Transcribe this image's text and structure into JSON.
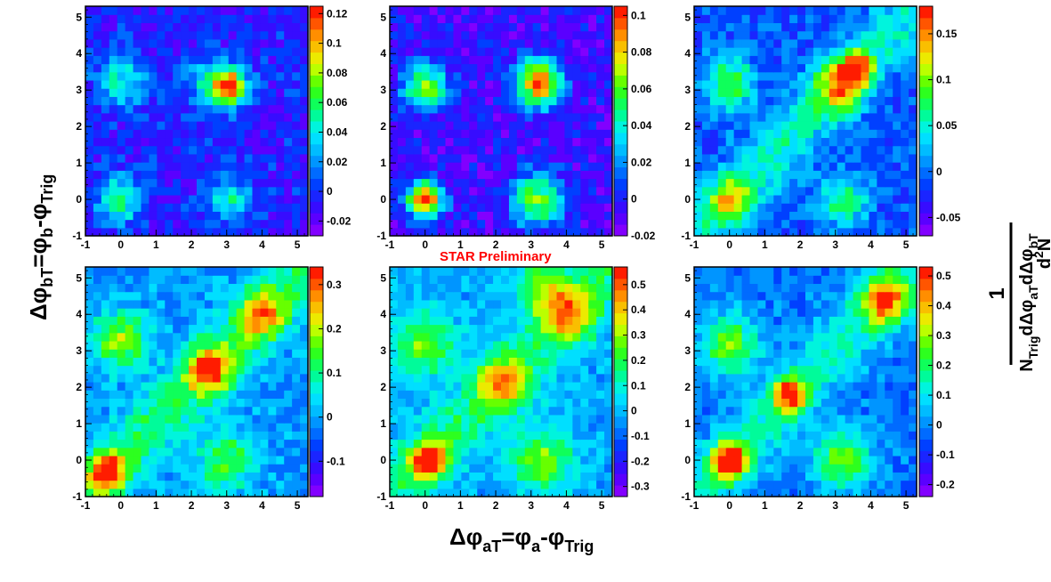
{
  "annotation": "STAR Preliminary",
  "axis_labels": {
    "y": {
      "main": "Δφ",
      "main_sub": "bT",
      "mid": "=φ",
      "mid_sub": "b",
      "tail": "-φ",
      "tail_sub": "Trig"
    },
    "x": {
      "main": "Δφ",
      "main_sub": "aT",
      "mid": "=φ",
      "mid_sub": "a",
      "tail": "-φ",
      "tail_sub": "Trig"
    },
    "z": {
      "numerator": "1",
      "denominator_pre": "N",
      "denominator_pre_sub": "Trig",
      "denominator_mid": "dΔφ",
      "denominator_mid_sub": "aT",
      "denominator_post": "dΔφ",
      "denominator_post_sub": "bT",
      "top": "d",
      "top_sup": "2",
      "top_post": "N"
    }
  },
  "chart_data": [
    {
      "type": "heatmap",
      "panel": "top-left",
      "x_range": [
        -1,
        5.3
      ],
      "y_range": [
        -1,
        5.3
      ],
      "xticks": [
        "-1",
        "0",
        "1",
        "2",
        "3",
        "4",
        "5"
      ],
      "yticks": [
        "-1",
        "0",
        "1",
        "2",
        "3",
        "4",
        "5"
      ],
      "z_range": [
        -0.03,
        0.125
      ],
      "z_ticks": [
        "0.12",
        "0.1",
        "0.08",
        "0.06",
        "0.04",
        "0.02",
        "0",
        "-0.02"
      ],
      "z_tick_values": [
        0.12,
        0.1,
        0.08,
        0.06,
        0.04,
        0.02,
        0,
        -0.02
      ],
      "base": -0.005,
      "features": [
        {
          "x": 0,
          "y": 0,
          "amp": 0.06,
          "s": 0.45
        },
        {
          "x": 0,
          "y": 3.3,
          "amp": 0.05,
          "s": 0.5
        },
        {
          "x": 3.1,
          "y": 3.1,
          "amp": 0.12,
          "s": 0.35
        },
        {
          "x": 3.1,
          "y": 0,
          "amp": 0.05,
          "s": 0.45
        },
        {
          "x": 2.5,
          "y": 3.2,
          "amp": 0.04,
          "s": 0.5
        }
      ],
      "noise": 0.015,
      "seed": 11
    },
    {
      "type": "heatmap",
      "panel": "top-middle",
      "x_range": [
        -1,
        5.3
      ],
      "y_range": [
        -1,
        5.3
      ],
      "xticks": [
        "-1",
        "0",
        "1",
        "2",
        "3",
        "4",
        "5"
      ],
      "yticks": [
        "-1",
        "0",
        "1",
        "2",
        "3",
        "4",
        "5"
      ],
      "z_range": [
        -0.02,
        0.105
      ],
      "z_ticks": [
        "0.1",
        "0.08",
        "0.06",
        "0.04",
        "0.02",
        "0",
        "-0.02"
      ],
      "z_tick_values": [
        0.1,
        0.08,
        0.06,
        0.04,
        0.02,
        0,
        -0.02
      ],
      "base": -0.005,
      "features": [
        {
          "x": 0,
          "y": 0,
          "amp": 0.11,
          "s": 0.35
        },
        {
          "x": 0,
          "y": 3.1,
          "amp": 0.07,
          "s": 0.45
        },
        {
          "x": 3.2,
          "y": 3.2,
          "amp": 0.1,
          "s": 0.45
        },
        {
          "x": 3.2,
          "y": 0,
          "amp": 0.07,
          "s": 0.5
        }
      ],
      "noise": 0.012,
      "seed": 23
    },
    {
      "type": "heatmap",
      "panel": "top-right",
      "x_range": [
        -1,
        5.3
      ],
      "y_range": [
        -1,
        5.3
      ],
      "xticks": [
        "-1",
        "0",
        "1",
        "2",
        "3",
        "4",
        "5"
      ],
      "yticks": [
        "-1",
        "0",
        "1",
        "2",
        "3",
        "4",
        "5"
      ],
      "z_range": [
        -0.07,
        0.18
      ],
      "z_ticks": [
        "0.15",
        "0.1",
        "0.05",
        "0",
        "-0.05"
      ],
      "z_tick_values": [
        0.15,
        0.1,
        0.05,
        0,
        -0.05
      ],
      "base": -0.01,
      "features": [
        {
          "x": 0,
          "y": 0,
          "amp": 0.09,
          "s": 0.45
        },
        {
          "x": 0,
          "y": 3.2,
          "amp": 0.1,
          "s": 0.5
        },
        {
          "x": 3.1,
          "y": 3.1,
          "amp": 0.11,
          "s": 0.5
        },
        {
          "x": 3.6,
          "y": 3.6,
          "amp": 0.15,
          "s": 0.3
        },
        {
          "x": 3.2,
          "y": 0,
          "amp": 0.08,
          "s": 0.5
        }
      ],
      "ridge": {
        "amp": 0.06,
        "s": 0.6
      },
      "noise": 0.02,
      "seed": 37
    },
    {
      "type": "heatmap",
      "panel": "bottom-left",
      "x_range": [
        -1,
        5.3
      ],
      "y_range": [
        -1,
        5.3
      ],
      "xticks": [
        "-1",
        "0",
        "1",
        "2",
        "3",
        "4",
        "5"
      ],
      "yticks": [
        "-1",
        "0",
        "1",
        "2",
        "3",
        "4",
        "5"
      ],
      "z_range": [
        -0.18,
        0.34
      ],
      "z_ticks": [
        "0.3",
        "0.2",
        "0.1",
        "0",
        "-0.1"
      ],
      "z_tick_values": [
        0.3,
        0.2,
        0.1,
        0,
        -0.1
      ],
      "base": -0.01,
      "features": [
        {
          "x": -0.4,
          "y": -0.3,
          "amp": 0.3,
          "s": 0.35
        },
        {
          "x": 0,
          "y": 3.3,
          "amp": 0.2,
          "s": 0.55
        },
        {
          "x": 2.5,
          "y": 2.5,
          "amp": 0.25,
          "s": 0.45
        },
        {
          "x": 4,
          "y": 4,
          "amp": 0.2,
          "s": 0.45
        },
        {
          "x": 3,
          "y": 0,
          "amp": 0.15,
          "s": 0.6
        }
      ],
      "ridge": {
        "amp": 0.12,
        "s": 0.6
      },
      "noise": 0.04,
      "seed": 41
    },
    {
      "type": "heatmap",
      "panel": "bottom-middle",
      "x_range": [
        -1,
        5.3
      ],
      "y_range": [
        -1,
        5.3
      ],
      "xticks": [
        "-1",
        "0",
        "1",
        "2",
        "3",
        "4",
        "5"
      ],
      "yticks": [
        "-1",
        "0",
        "1",
        "2",
        "3",
        "4",
        "5"
      ],
      "z_range": [
        -0.34,
        0.57
      ],
      "z_ticks": [
        "0.5",
        "0.4",
        "0.3",
        "0.2",
        "0.1",
        "0",
        "-0.1",
        "-0.2",
        "-0.3"
      ],
      "z_tick_values": [
        0.5,
        0.4,
        0.3,
        0.2,
        0.1,
        0,
        -0.1,
        -0.2,
        -0.3
      ],
      "base": -0.02,
      "features": [
        {
          "x": 0.1,
          "y": 0,
          "amp": 0.55,
          "s": 0.35
        },
        {
          "x": 2.2,
          "y": 2.1,
          "amp": 0.35,
          "s": 0.5
        },
        {
          "x": 4.1,
          "y": 4,
          "amp": 0.35,
          "s": 0.5
        },
        {
          "x": 3.3,
          "y": 0,
          "amp": 0.3,
          "s": 0.6
        },
        {
          "x": 0,
          "y": 3.2,
          "amp": 0.3,
          "s": 0.6
        },
        {
          "x": 3.3,
          "y": 4.8,
          "amp": 0.3,
          "s": 0.5
        }
      ],
      "ridge": {
        "amp": 0.18,
        "s": 0.6
      },
      "noise": 0.06,
      "seed": 53
    },
    {
      "type": "heatmap",
      "panel": "bottom-right",
      "x_range": [
        -1,
        5.3
      ],
      "y_range": [
        -1,
        5.3
      ],
      "xticks": [
        "-1",
        "0",
        "1",
        "2",
        "3",
        "4",
        "5"
      ],
      "yticks": [
        "-1",
        "0",
        "1",
        "2",
        "3",
        "4",
        "5"
      ],
      "z_range": [
        -0.24,
        0.53
      ],
      "z_ticks": [
        "0.5",
        "0.4",
        "0.3",
        "0.2",
        "0.1",
        "0",
        "-0.1",
        "-0.2"
      ],
      "z_tick_values": [
        0.5,
        0.4,
        0.3,
        0.2,
        0.1,
        0,
        -0.1,
        -0.2
      ],
      "base": -0.02,
      "features": [
        {
          "x": 0,
          "y": 0,
          "amp": 0.55,
          "s": 0.35
        },
        {
          "x": 1.7,
          "y": 1.8,
          "amp": 0.45,
          "s": 0.35
        },
        {
          "x": 4.4,
          "y": 4.4,
          "amp": 0.4,
          "s": 0.45
        },
        {
          "x": 3.2,
          "y": 0,
          "amp": 0.28,
          "s": 0.6
        },
        {
          "x": 0,
          "y": 3.2,
          "amp": 0.28,
          "s": 0.6
        }
      ],
      "ridge": {
        "amp": 0.16,
        "s": 0.6
      },
      "noise": 0.05,
      "seed": 67
    }
  ]
}
